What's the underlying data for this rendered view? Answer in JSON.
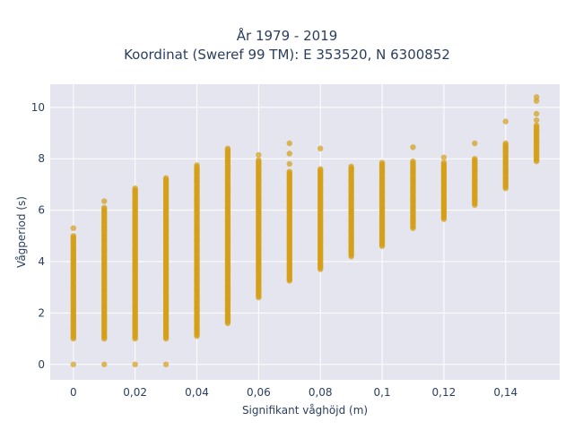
{
  "chart_data": {
    "type": "scatter",
    "title_lines": [
      "År 1979 - 2019",
      "Koordinat (Sweref 99 TM): E 353520, N 6300852"
    ],
    "xlabel": "Signifikant våghöjd (m)",
    "ylabel": "Vågperiod (s)",
    "xlim": [
      -0.0075,
      0.1575
    ],
    "ylim": [
      -0.6,
      10.9
    ],
    "x_ticks": [
      0,
      0.02,
      0.04,
      0.06,
      0.08,
      0.1,
      0.12,
      0.14
    ],
    "x_tick_labels": [
      "0",
      "0,02",
      "0,04",
      "0,06",
      "0,08",
      "0,1",
      "0,12",
      "0,14"
    ],
    "y_ticks": [
      0,
      2,
      4,
      6,
      8,
      10
    ],
    "y_tick_labels": [
      "0",
      "2",
      "4",
      "6",
      "8",
      "10"
    ],
    "grid": true,
    "marker_color": "#d4a017",
    "background_color": "#e5e5ef",
    "columns": [
      {
        "x": 0.0,
        "ymin": 1.0,
        "ymax": 5.0,
        "extra": [
          0,
          5.3
        ]
      },
      {
        "x": 0.01,
        "ymin": 1.0,
        "ymax": 6.1,
        "extra": [
          0,
          6.35
        ]
      },
      {
        "x": 0.02,
        "ymin": 1.0,
        "ymax": 6.85,
        "extra": [
          0
        ]
      },
      {
        "x": 0.03,
        "ymin": 1.0,
        "ymax": 7.25,
        "extra": [
          0
        ]
      },
      {
        "x": 0.04,
        "ymin": 1.1,
        "ymax": 7.75,
        "extra": []
      },
      {
        "x": 0.05,
        "ymin": 1.6,
        "ymax": 8.35,
        "extra": [
          8.4
        ]
      },
      {
        "x": 0.06,
        "ymin": 2.6,
        "ymax": 7.95,
        "extra": [
          8.15
        ]
      },
      {
        "x": 0.07,
        "ymin": 3.25,
        "ymax": 7.5,
        "extra": [
          7.8,
          8.2,
          8.6
        ]
      },
      {
        "x": 0.08,
        "ymin": 3.7,
        "ymax": 7.6,
        "extra": [
          8.4
        ]
      },
      {
        "x": 0.09,
        "ymin": 4.2,
        "ymax": 7.7,
        "extra": []
      },
      {
        "x": 0.1,
        "ymin": 4.6,
        "ymax": 7.85,
        "extra": []
      },
      {
        "x": 0.11,
        "ymin": 5.3,
        "ymax": 7.9,
        "extra": [
          8.45
        ]
      },
      {
        "x": 0.12,
        "ymin": 5.65,
        "ymax": 7.85,
        "extra": [
          8.05
        ]
      },
      {
        "x": 0.13,
        "ymin": 6.2,
        "ymax": 8.0,
        "extra": [
          8.6
        ]
      },
      {
        "x": 0.14,
        "ymin": 6.85,
        "ymax": 8.6,
        "extra": [
          9.45
        ]
      },
      {
        "x": 0.15,
        "ymin": 7.9,
        "ymax": 9.3,
        "extra": [
          9.5,
          9.75,
          10.25,
          10.4
        ]
      }
    ]
  }
}
